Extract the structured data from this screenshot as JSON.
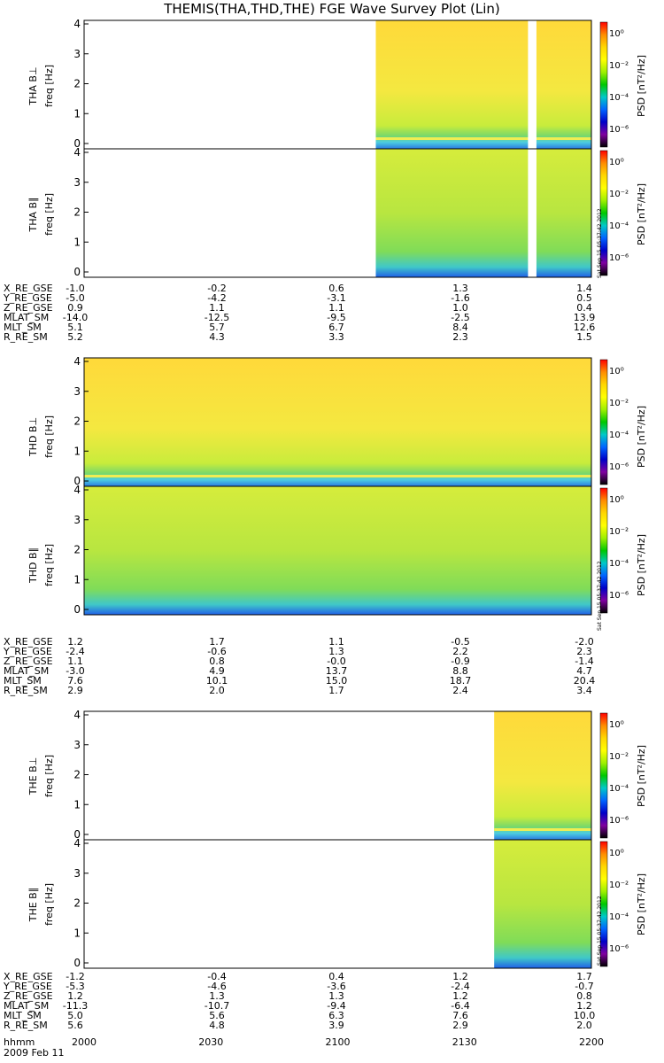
{
  "title": "THEMIS(THA,THD,THE) FGE Wave Survey Plot (Lin)",
  "freq_label": "freq [Hz]",
  "colorbar": {
    "label": "PSD [nT²/Hz]",
    "ticks": [
      "10⁰",
      "10⁻²",
      "10⁻⁴",
      "10⁻⁶"
    ],
    "colors": [
      "#ff0000",
      "#ff8c00",
      "#ffd700",
      "#ffff00",
      "#9ef000",
      "#00c800",
      "#00c8c8",
      "#0064ff",
      "#0000c8",
      "#8000a0",
      "#000000"
    ]
  },
  "stamp": "Sat Sep 15 05:37:42 2012",
  "date_label": "2009 Feb 11",
  "time_ticks": [
    "2000",
    "2030",
    "2100",
    "2130",
    "2200"
  ],
  "time_axis_label": "hhmm",
  "panels": [
    {
      "label": "THA B⊥"
    },
    {
      "label": "THA B∥"
    },
    {
      "label": "THD B⊥"
    },
    {
      "label": "THD B∥"
    },
    {
      "label": "THE B⊥"
    },
    {
      "label": "THE B∥"
    }
  ],
  "ephem_labels": [
    "X_RE_GSE",
    "Y_RE_GSE",
    "Z_RE_GSE",
    "MLAT_SM",
    "MLT_SM",
    "R_RE_SM"
  ],
  "ephemeris": [
    {
      "probe": "THA",
      "rows": [
        [
          "-1.0",
          "-0.2",
          "0.6",
          "1.3",
          "1.4"
        ],
        [
          "-5.0",
          "-4.2",
          "-3.1",
          "-1.6",
          "0.5"
        ],
        [
          "0.9",
          "1.1",
          "1.1",
          "1.0",
          "0.4"
        ],
        [
          "-14.0",
          "-12.5",
          "-9.5",
          "-2.5",
          "13.9"
        ],
        [
          "5.1",
          "5.7",
          "6.7",
          "8.4",
          "12.6"
        ],
        [
          "5.2",
          "4.3",
          "3.3",
          "2.3",
          "1.5"
        ]
      ]
    },
    {
      "probe": "THD",
      "rows": [
        [
          "1.2",
          "1.7",
          "1.1",
          "-0.5",
          "-2.0"
        ],
        [
          "-2.4",
          "-0.6",
          "1.3",
          "2.2",
          "2.3"
        ],
        [
          "1.1",
          "0.8",
          "-0.0",
          "-0.9",
          "-1.4"
        ],
        [
          "-3.0",
          "4.9",
          "13.7",
          "8.8",
          "4.7"
        ],
        [
          "7.6",
          "10.1",
          "15.0",
          "18.7",
          "20.4"
        ],
        [
          "2.9",
          "2.0",
          "1.7",
          "2.4",
          "3.4"
        ]
      ]
    },
    {
      "probe": "THE",
      "rows": [
        [
          "-1.2",
          "-0.4",
          "0.4",
          "1.2",
          "1.7"
        ],
        [
          "-5.3",
          "-4.6",
          "-3.6",
          "-2.4",
          "-0.7"
        ],
        [
          "1.2",
          "1.3",
          "1.3",
          "1.2",
          "0.8"
        ],
        [
          "-11.3",
          "-10.7",
          "-9.4",
          "-6.4",
          "1.2"
        ],
        [
          "5.0",
          "5.6",
          "6.3",
          "7.6",
          "10.0"
        ],
        [
          "5.6",
          "4.8",
          "3.9",
          "2.9",
          "2.0"
        ]
      ]
    }
  ],
  "chart_data": {
    "type": "heatmap",
    "title": "THEMIS(THA,THD,THE) FGE Wave Survey Plot (Lin)",
    "xlabel": "hhmm",
    "ylabel": "freq [Hz]",
    "xlim": [
      "2000",
      "2200"
    ],
    "ylim": [
      0,
      4
    ],
    "y_ticks": [
      0,
      1,
      2,
      3,
      4
    ],
    "color_scale": "log",
    "color_range": [
      1e-07,
      10.0
    ],
    "panels": [
      {
        "name": "THA B⊥",
        "data_start": "2109",
        "data_end": "2200",
        "gap": [
          "2145",
          "2147"
        ]
      },
      {
        "name": "THA B∥",
        "data_start": "2109",
        "data_end": "2200",
        "gap": [
          "2145",
          "2147"
        ]
      },
      {
        "name": "THD B⊥",
        "data_start": "2000",
        "data_end": "2200"
      },
      {
        "name": "THD B∥",
        "data_start": "2000",
        "data_end": "2200"
      },
      {
        "name": "THE B⊥",
        "data_start": "2137",
        "data_end": "2200"
      },
      {
        "name": "THE B∥",
        "data_start": "2137",
        "data_end": "2200"
      }
    ]
  }
}
